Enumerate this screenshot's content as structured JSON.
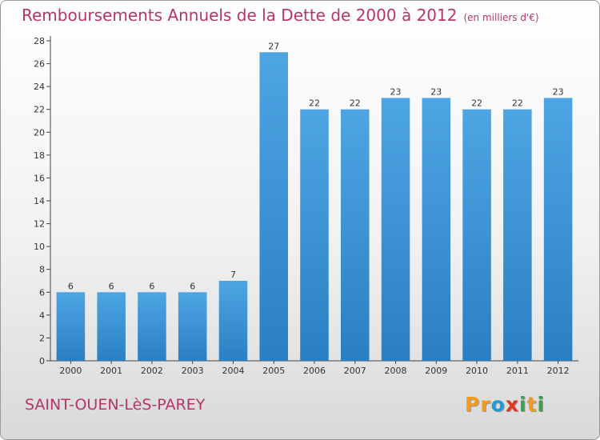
{
  "title": "Remboursements Annuels de la Dette de 2000 à 2012",
  "unit_note": "(en milliers d'€)",
  "commune": "SAINT-OUEN-LèS-PAREY",
  "logo": {
    "letters": [
      "P",
      "r",
      "o",
      "x",
      "i",
      "t",
      "i"
    ],
    "colors": [
      "#f39a21",
      "#f39a21",
      "#1f9bd7",
      "#e0371f",
      "#3aa24a",
      "#f39a21",
      "#3aa24a"
    ]
  },
  "colors": {
    "bar": "#4ea5e3",
    "bar_dark": "#2a7fc2",
    "title": "#b5356b"
  },
  "chart_data": {
    "type": "bar",
    "title": "Remboursements Annuels de la Dette de 2000 à 2012",
    "categories": [
      "2000",
      "2001",
      "2002",
      "2003",
      "2004",
      "2005",
      "2006",
      "2007",
      "2008",
      "2009",
      "2010",
      "2011",
      "2012"
    ],
    "values": [
      6,
      6,
      6,
      6,
      7,
      27,
      22,
      22,
      23,
      23,
      22,
      22,
      23
    ],
    "ylim": [
      0,
      28
    ],
    "yticks": [
      0,
      2,
      4,
      6,
      8,
      10,
      12,
      14,
      16,
      18,
      20,
      22,
      24,
      26,
      28
    ],
    "grid": false,
    "data_labels": true
  }
}
